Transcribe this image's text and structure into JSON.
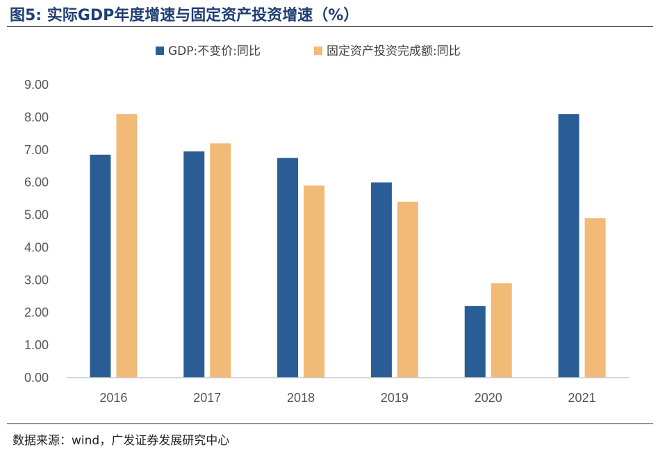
{
  "figure": {
    "title": "图5:  实际GDP年度增速与固定资产投资增速（%）",
    "source": "数据来源：wind，广发证券发展研究中心"
  },
  "colors": {
    "title": "#1f3f74",
    "gdp": "#2a5d95",
    "fai": "#f2ba77"
  },
  "chart_data": {
    "type": "bar",
    "title": "",
    "xlabel": "",
    "ylabel": "",
    "categories": [
      "2016",
      "2017",
      "2018",
      "2019",
      "2020",
      "2021"
    ],
    "series": [
      {
        "name": "GDP:不变价:同比",
        "color": "#2a5d95",
        "values": [
          6.85,
          6.95,
          6.75,
          6.0,
          2.2,
          8.1
        ]
      },
      {
        "name": "固定资产投资完成额:同比",
        "color": "#f2ba77",
        "values": [
          8.1,
          7.2,
          5.9,
          5.4,
          2.9,
          4.9
        ]
      }
    ],
    "ylim": [
      0,
      9
    ],
    "yticks": [
      "0.00",
      "1.00",
      "2.00",
      "3.00",
      "4.00",
      "5.00",
      "6.00",
      "7.00",
      "8.00",
      "9.00"
    ],
    "grid": false,
    "legend": "top-center"
  }
}
